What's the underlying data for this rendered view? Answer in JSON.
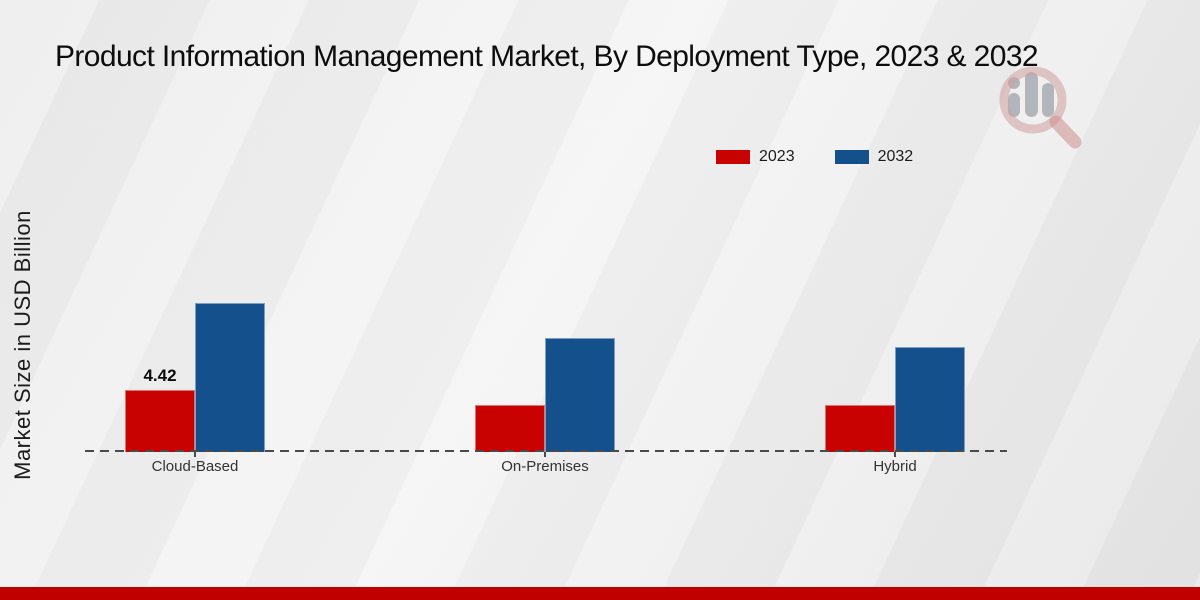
{
  "page": {
    "title": "Product Information Management Market, By Deployment Type, 2023 & 2032",
    "bottom_strip_color": "#c00000",
    "axis_color": "#4a4a4a",
    "background_color": "#ededed"
  },
  "brand_logo": {
    "name": "magnifier-bar-chart-logo",
    "ring_color": "#cf9e9e",
    "handle_color": "#cf8f8f",
    "bars_color": "#8d929b"
  },
  "legend": {
    "items": [
      {
        "label": "2023",
        "color": "#c80101"
      },
      {
        "label": "2032",
        "color": "#14508c"
      }
    ]
  },
  "chart_data": {
    "type": "bar",
    "title": "Product Information Management Market, By Deployment Type, 2023 & 2032",
    "xlabel": "",
    "ylabel": "Market Size in USD Billion",
    "categories": [
      "Cloud-Based",
      "On-Premises",
      "Hybrid"
    ],
    "series": [
      {
        "name": "2023",
        "color": "#c80101",
        "values": [
          4.42,
          3.3,
          3.3
        ]
      },
      {
        "name": "2032",
        "color": "#14508c",
        "values": [
          10.7,
          8.2,
          7.5
        ]
      }
    ],
    "value_labels": [
      {
        "series_index": 0,
        "category_index": 0,
        "text": "4.42"
      }
    ],
    "ylim": [
      0,
      12
    ],
    "grid": false,
    "legend_position": "top-right",
    "baseline_style": "dashed"
  }
}
